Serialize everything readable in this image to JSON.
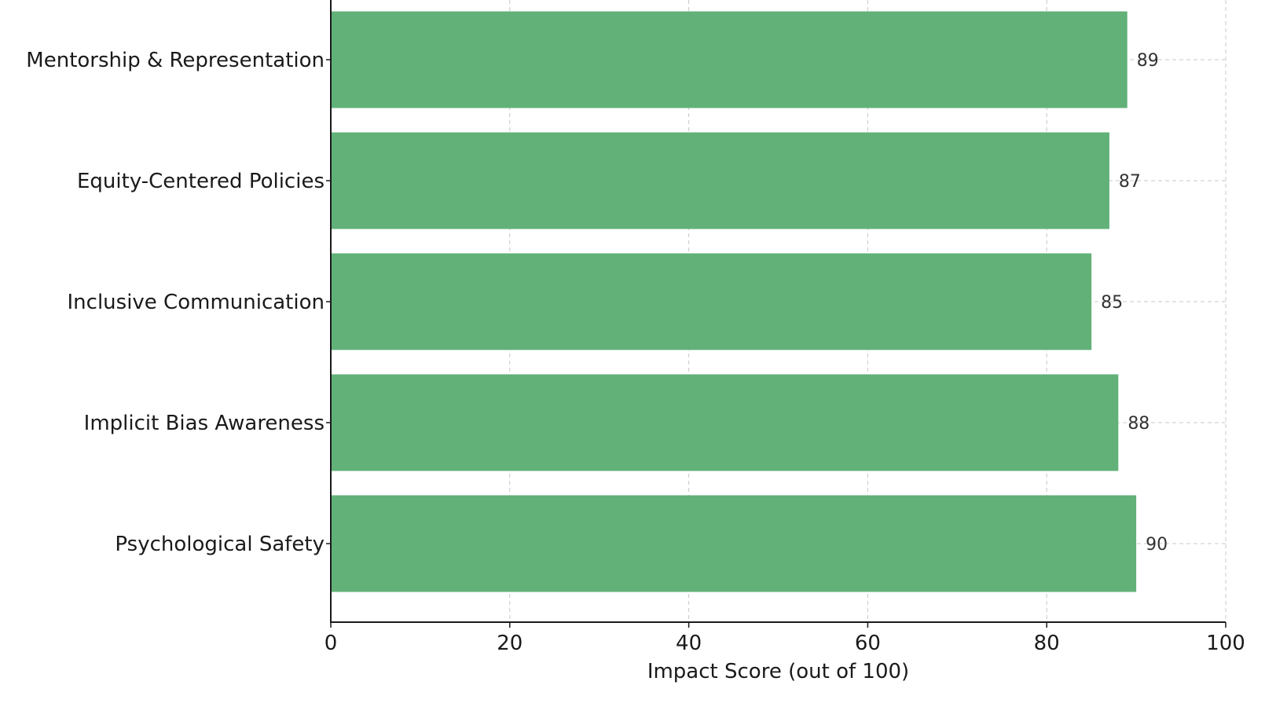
{
  "chart_data": {
    "type": "bar",
    "orientation": "horizontal",
    "categories": [
      "Psychological Safety",
      "Implicit Bias Awareness",
      "Inclusive Communication",
      "Equity-Centered Policies",
      "Mentorship & Representation"
    ],
    "values": [
      90,
      88,
      85,
      87,
      89
    ],
    "title": "",
    "xlabel": "Impact Score (out of 100)",
    "ylabel": "",
    "xlim": [
      0,
      100
    ],
    "xticks": [
      0,
      20,
      40,
      60,
      80,
      100
    ],
    "bar_color": "#61b178",
    "grid": true,
    "data_labels": true
  }
}
